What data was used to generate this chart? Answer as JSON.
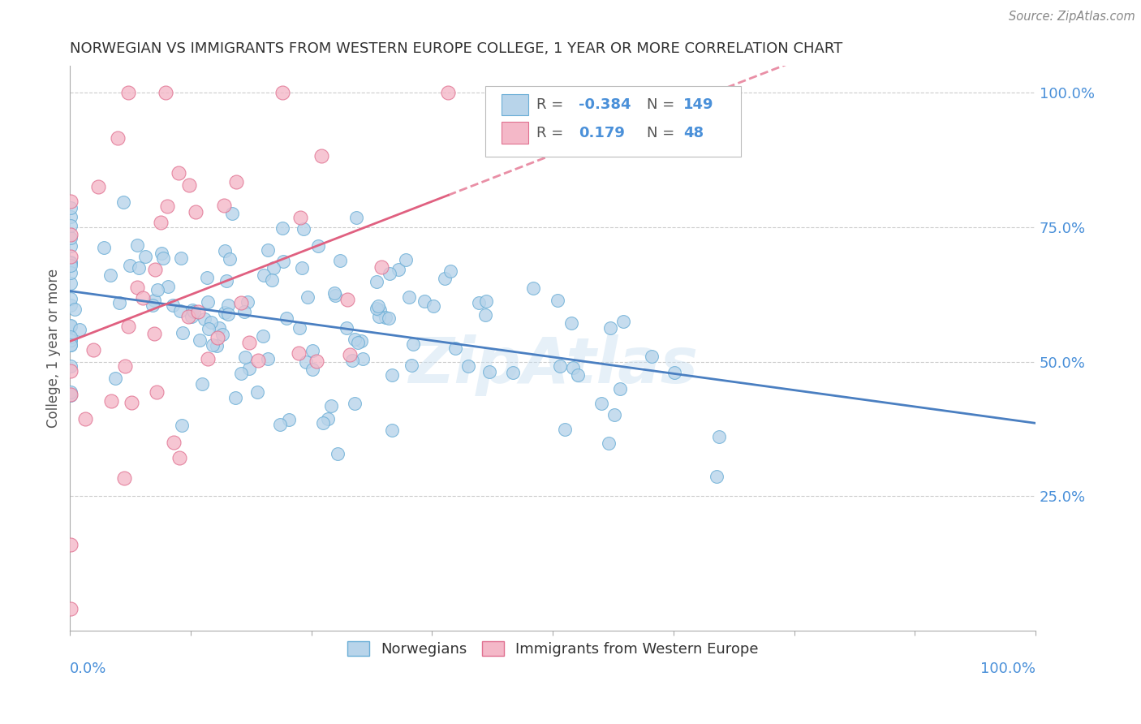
{
  "title": "NORWEGIAN VS IMMIGRANTS FROM WESTERN EUROPE COLLEGE, 1 YEAR OR MORE CORRELATION CHART",
  "source": "Source: ZipAtlas.com",
  "ylabel": "College, 1 year or more",
  "blue_R": -0.384,
  "blue_N": 149,
  "pink_R": 0.179,
  "pink_N": 48,
  "blue_color": "#b8d4ea",
  "blue_edge": "#6aaed6",
  "pink_color": "#f4b8c8",
  "pink_edge": "#e07090",
  "blue_line_color": "#4a7fc1",
  "pink_line_color": "#e06080",
  "watermark": "ZipAtlas",
  "xmin": 0.0,
  "xmax": 1.0,
  "ymin": 0.0,
  "ymax": 1.05,
  "right_yticks": [
    0.25,
    0.5,
    0.75,
    1.0
  ],
  "right_yticklabels": [
    "25.0%",
    "50.0%",
    "75.0%",
    "100.0%"
  ],
  "title_color": "#333333",
  "axis_color": "#4a90d9",
  "legend_R_blue": "-0.384",
  "legend_N_blue": "149",
  "legend_R_pink": "0.179",
  "legend_N_pink": "48",
  "figsize": [
    14.06,
    8.92
  ],
  "dpi": 100
}
